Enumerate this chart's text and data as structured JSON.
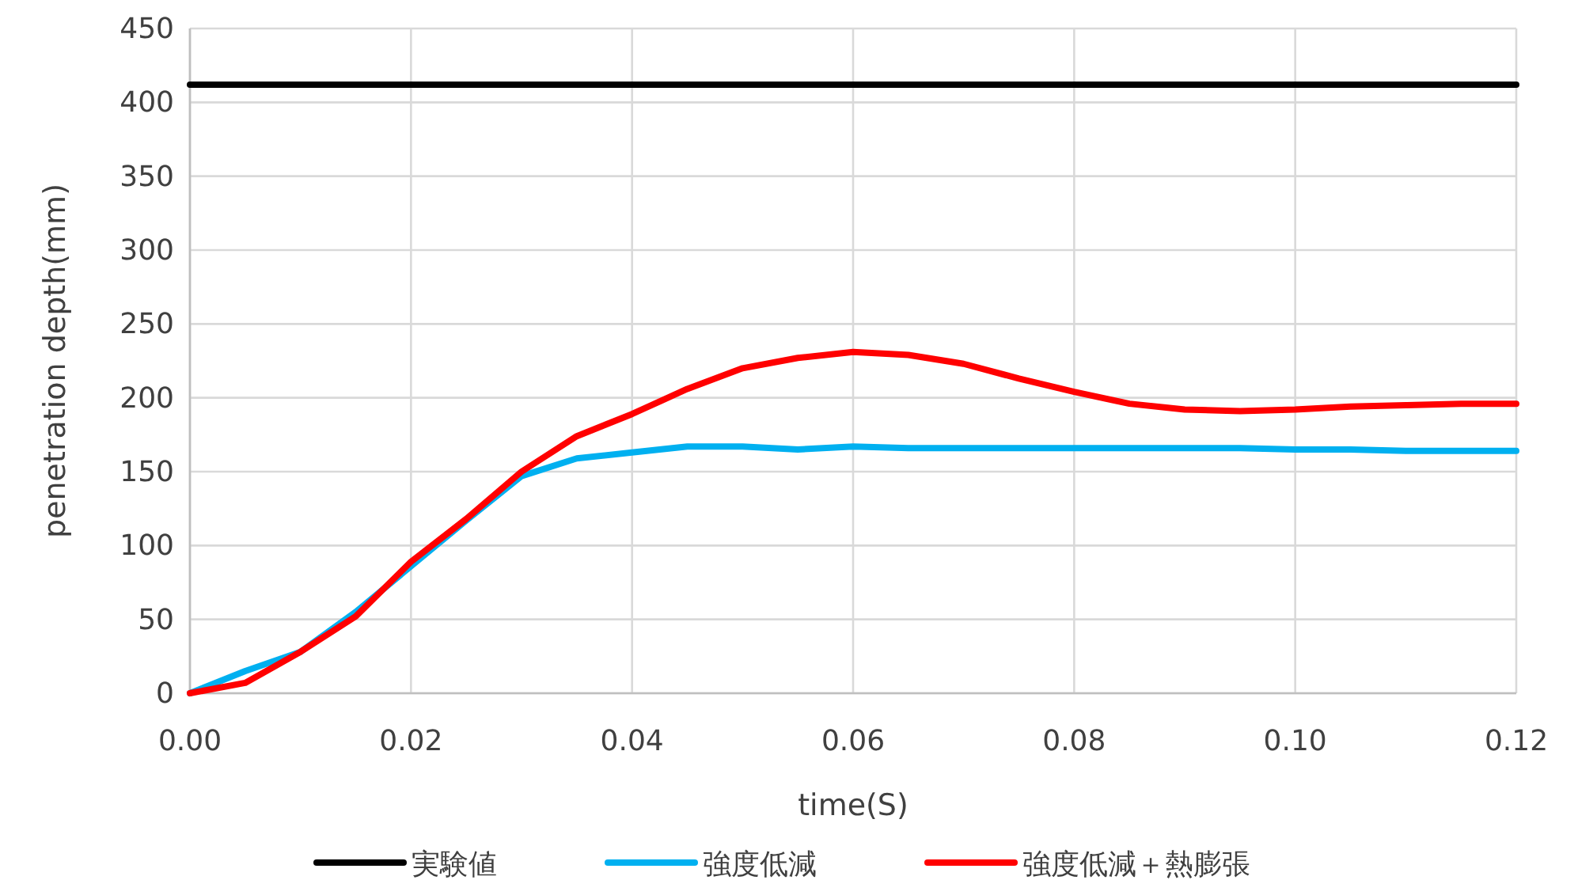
{
  "chart_data": {
    "type": "line",
    "xlabel": "time(S)",
    "ylabel": "penetration depth(mm)",
    "xlim": [
      0,
      0.12
    ],
    "xticks": [
      {
        "value": 0,
        "label": "0.00"
      },
      {
        "value": 0.02,
        "label": "0.02"
      },
      {
        "value": 0.04,
        "label": "0.04"
      },
      {
        "value": 0.06,
        "label": "0.06"
      },
      {
        "value": 0.08,
        "label": "0.08"
      },
      {
        "value": 0.1,
        "label": "0.10"
      },
      {
        "value": 0.12,
        "label": "0.12"
      }
    ],
    "ylim": [
      0,
      450
    ],
    "yticks": [
      0,
      50,
      100,
      150,
      200,
      250,
      300,
      350,
      400,
      450
    ],
    "grid": true,
    "legend": "bottom",
    "series": [
      {
        "name": "実験値",
        "color": "#000000",
        "x": [
          0,
          0.12
        ],
        "values": [
          412,
          412
        ]
      },
      {
        "name": "強度低減",
        "color": "#00b0f0",
        "x": [
          0,
          0.005,
          0.01,
          0.015,
          0.02,
          0.025,
          0.03,
          0.035,
          0.04,
          0.045,
          0.05,
          0.055,
          0.06,
          0.065,
          0.07,
          0.075,
          0.08,
          0.085,
          0.09,
          0.095,
          0.1,
          0.105,
          0.11,
          0.115,
          0.12
        ],
        "values": [
          0,
          15,
          28,
          55,
          86,
          117,
          147,
          159,
          163,
          167,
          167,
          165,
          167,
          166,
          166,
          166,
          166,
          166,
          166,
          166,
          165,
          165,
          164,
          164,
          164
        ]
      },
      {
        "name": "強度低減＋熱膨張",
        "color": "#ff0000",
        "x": [
          0,
          0.005,
          0.01,
          0.015,
          0.02,
          0.025,
          0.03,
          0.035,
          0.04,
          0.045,
          0.05,
          0.055,
          0.06,
          0.065,
          0.07,
          0.075,
          0.08,
          0.085,
          0.09,
          0.095,
          0.1,
          0.105,
          0.11,
          0.115,
          0.12
        ],
        "values": [
          0,
          7,
          28,
          52,
          89,
          118,
          150,
          174,
          189,
          206,
          220,
          227,
          231,
          229,
          223,
          213,
          204,
          196,
          192,
          191,
          192,
          194,
          195,
          196,
          196
        ]
      }
    ]
  }
}
